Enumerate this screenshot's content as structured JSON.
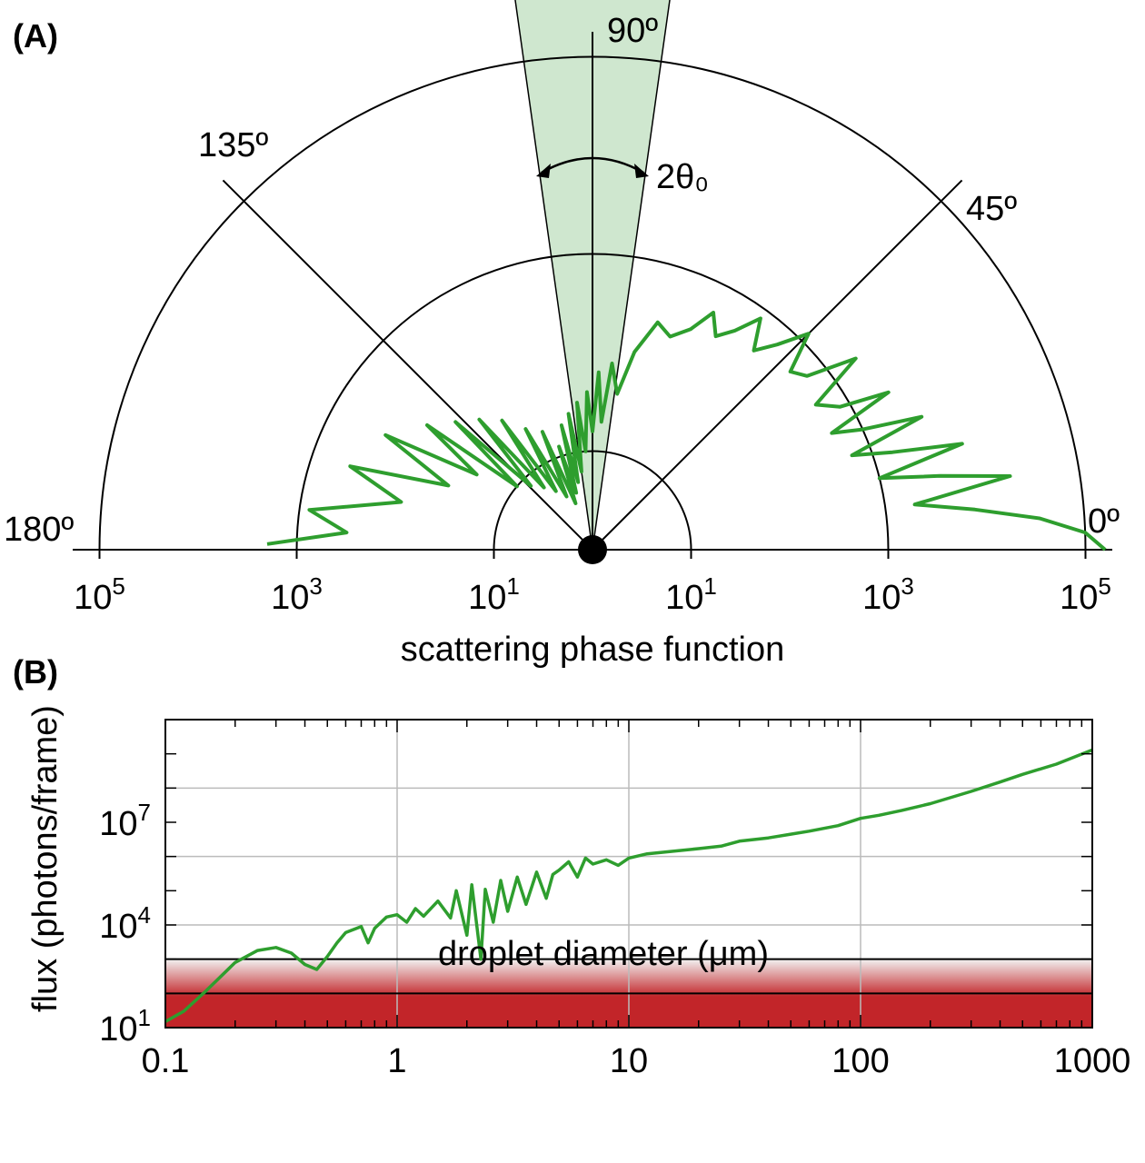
{
  "chart_data": [
    {
      "panel": "(A)",
      "type": "polar",
      "xlabel": "scattering phase function",
      "scale": "log",
      "radial_ticks": [
        "10^5",
        "10^3",
        "10^1",
        "10^1",
        "10^3",
        "10^5"
      ],
      "angle_labels": [
        "0º",
        "45º",
        "90º",
        "135º",
        "180º"
      ],
      "acceptance_label": "2θ₀",
      "acceptance_half_angle_deg": 8,
      "series": [
        {
          "points_deg_log10": [
            [
              0,
              5.2
            ],
            [
              2,
              5.0
            ],
            [
              4,
              4.55
            ],
            [
              6,
              3.9
            ],
            [
              8,
              3.3
            ],
            [
              10,
              4.3
            ],
            [
              12,
              3.6
            ],
            [
              14,
              3.0
            ],
            [
              16,
              3.9
            ],
            [
              18,
              3.2
            ],
            [
              20,
              2.8
            ],
            [
              22,
              3.6
            ],
            [
              24,
              3.0
            ],
            [
              26,
              2.7
            ],
            [
              28,
              3.4
            ],
            [
              30,
              2.9
            ],
            [
              33,
              2.7
            ],
            [
              36,
              3.3
            ],
            [
              39,
              2.8
            ],
            [
              42,
              2.7
            ],
            [
              45,
              3.1
            ],
            [
              48,
              2.8
            ],
            [
              51,
              2.6
            ],
            [
              54,
              2.9
            ],
            [
              57,
              2.65
            ],
            [
              60,
              2.5
            ],
            [
              63,
              2.7
            ],
            [
              66,
              2.45
            ],
            [
              70,
              2.3
            ],
            [
              74,
              2.4
            ],
            [
              78,
              2.05
            ],
            [
              81,
              1.6
            ],
            [
              84,
              1.9
            ],
            [
              86,
              1.3
            ],
            [
              88,
              1.8
            ],
            [
              90,
              1.2
            ],
            [
              92,
              1.6
            ],
            [
              94,
              1.0
            ],
            [
              96,
              1.5
            ],
            [
              98,
              0.8
            ],
            [
              100,
              1.4
            ],
            [
              102,
              0.7
            ],
            [
              104,
              1.3
            ],
            [
              106,
              0.6
            ],
            [
              108,
              1.1
            ],
            [
              110,
              0.5
            ],
            [
              113,
              1.3
            ],
            [
              116,
              0.6
            ],
            [
              119,
              1.4
            ],
            [
              122,
              0.7
            ],
            [
              125,
              1.6
            ],
            [
              128,
              0.8
            ],
            [
              131,
              1.75
            ],
            [
              134,
              0.9
            ],
            [
              137,
              1.9
            ],
            [
              140,
              1.0
            ],
            [
              143,
              2.1
            ],
            [
              147,
              1.4
            ],
            [
              151,
              2.4
            ],
            [
              156,
              1.6
            ],
            [
              161,
              2.6
            ],
            [
              166,
              2.0
            ],
            [
              172,
              2.9
            ],
            [
              176,
              2.5
            ],
            [
              179,
              3.3
            ]
          ]
        }
      ]
    },
    {
      "panel": "(B)",
      "type": "line",
      "xlabel": "droplet diameter  (μm)",
      "ylabel": "flux  (photons/frame)",
      "xscale": "log",
      "yscale": "log",
      "xlim": [
        0.1,
        1000
      ],
      "ylim": [
        10,
        10000000000
      ],
      "x_ticks": [
        "0.1",
        "1",
        "10",
        "100",
        "1000"
      ],
      "y_ticks": [
        {
          "base": "10",
          "exp": "1",
          "value": 10
        },
        {
          "base": "10",
          "exp": "4",
          "value": 10000
        },
        {
          "base": "10",
          "exp": "7",
          "value": 10000000
        }
      ],
      "grid": true,
      "threshold_band": {
        "from": 10,
        "to": 1000
      },
      "threshold_lines": [
        100,
        1000
      ],
      "series": [
        {
          "x": [
            0.1,
            0.12,
            0.15,
            0.2,
            0.25,
            0.3,
            0.35,
            0.4,
            0.45,
            0.5,
            0.55,
            0.6,
            0.7,
            0.75,
            0.8,
            0.9,
            1.0,
            1.1,
            1.2,
            1.3,
            1.5,
            1.7,
            1.8,
            2.0,
            2.1,
            2.3,
            2.4,
            2.6,
            2.8,
            3.0,
            3.3,
            3.6,
            4.0,
            4.4,
            4.7,
            5.0,
            5.5,
            6.0,
            6.5,
            7.0,
            8.0,
            9.0,
            10,
            12,
            15,
            20,
            25,
            30,
            40,
            50,
            60,
            80,
            100,
            120,
            150,
            200,
            300,
            400,
            500,
            700,
            1000
          ],
          "y": [
            15,
            30,
            120,
            800,
            1800,
            2200,
            1500,
            700,
            500,
            1200,
            3000,
            6000,
            9000,
            3000,
            8000,
            17000,
            20000,
            12000,
            30000,
            18000,
            50000,
            16000,
            100000,
            5000,
            150000,
            1000,
            110000,
            12000,
            200000,
            25000,
            250000,
            40000,
            350000,
            60000,
            300000,
            400000,
            700000,
            250000,
            900000,
            600000,
            800000,
            550000,
            900000,
            1200000,
            1400000,
            1700000,
            2000000,
            2800000,
            3500000,
            4500000,
            5500000,
            8000000,
            13000000,
            16000000,
            22000000,
            35000000,
            80000000,
            150000000,
            250000000,
            500000000,
            1300000000
          ]
        }
      ]
    }
  ],
  "colors": {
    "curve": "#2e9e2e",
    "cone_fill": "#cfe7cf",
    "band_red": "#c22529",
    "axis": "#000000",
    "grid": "#bbbbbb"
  }
}
